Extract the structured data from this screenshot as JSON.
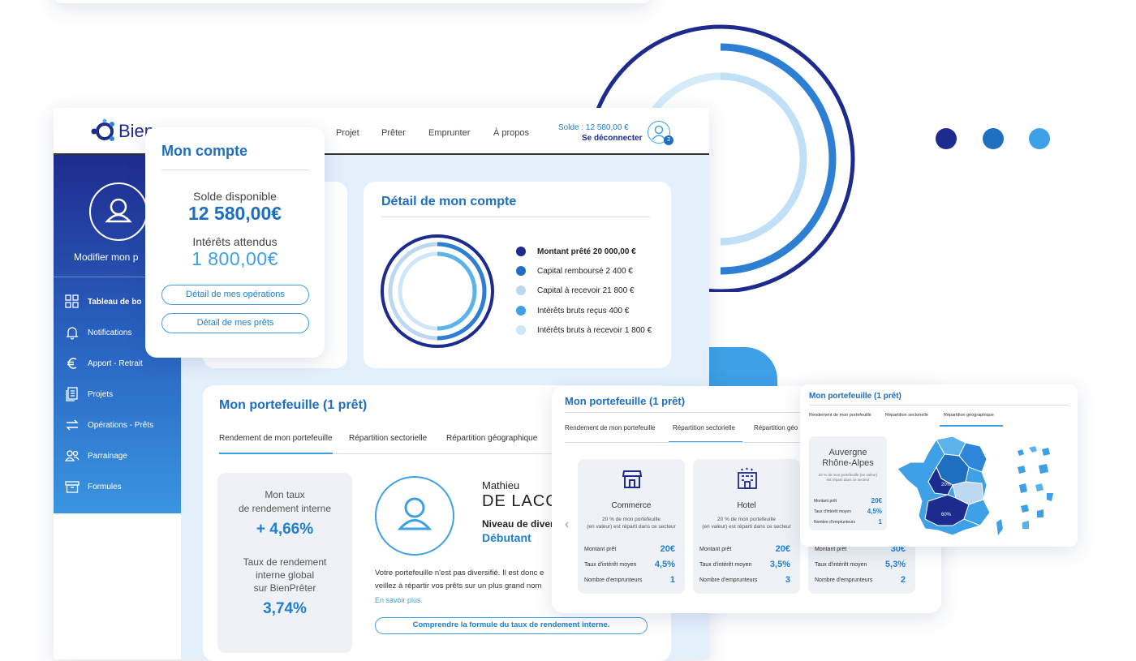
{
  "colors": {
    "navy": "#1e2b8e",
    "primary": "#1f6fc0",
    "mid": "#2d86d9",
    "light": "#5cb3ec",
    "pale": "#bcd8f0",
    "bg_panel": "#e3effb"
  },
  "header": {
    "logo_text": "Bien",
    "nav": [
      "Projet",
      "Prêter",
      "Emprunter",
      "À propos"
    ],
    "balance": "Solde : 12 580,00 €",
    "logout": "Se déconnecter",
    "notif_count": "3"
  },
  "sidebar": {
    "edit_profile": "Modifier mon p",
    "items": [
      {
        "label": "Tableau de bo",
        "icon": "dashboard-icon"
      },
      {
        "label": "Notifications",
        "icon": "bell-icon"
      },
      {
        "label": "Apport - Retrait",
        "icon": "euro-icon"
      },
      {
        "label": "Projets",
        "icon": "documents-icon"
      },
      {
        "label": "Opérations - Prêts",
        "icon": "transfer-icon"
      },
      {
        "label": "Parrainage",
        "icon": "users-icon"
      },
      {
        "label": "Formules",
        "icon": "box-icon"
      }
    ]
  },
  "account_popup": {
    "title": "Mon compte",
    "balance_label": "Solde disponible",
    "balance_value": "12 580,00€",
    "interest_label": "Intérêts attendus",
    "interest_value": "1 800,00€",
    "btn_operations": "Détail de mes opérations",
    "btn_loans": "Détail de mes prêts"
  },
  "account_detail": {
    "title": "Détail de mon compte",
    "legend": [
      {
        "label": "Montant prêté 20 000,00 €",
        "color": "#1e2b8e",
        "bold": true
      },
      {
        "label": "Capital remboursé 2 400 €",
        "color": "#1f6fc0",
        "bold": false
      },
      {
        "label": "Capital à recevoir 21 800 €",
        "color": "#bcd8f0",
        "bold": false
      },
      {
        "label": "Intérêts bruts reçus 400 €",
        "color": "#3ea0e6",
        "bold": false
      },
      {
        "label": "Intérêts bruts à recevoir 1 800 €",
        "color": "#cfe6f8",
        "bold": false
      }
    ]
  },
  "portfolio": {
    "title": "Mon portefeuille (1 prêt)",
    "tabs": [
      "Rendement de mon portefeuille",
      "Répartition sectorielle",
      "Répartition géographique"
    ],
    "rate_label_1": "Mon taux",
    "rate_label_2": "de rendement interne",
    "rate_value": "+ 4,66%",
    "global_label_1": "Taux de rendement",
    "global_label_2": "interne global",
    "global_label_3": "sur BienPrêter",
    "global_value": "3,74%",
    "first_name": "Mathieu",
    "last_name": "DE LACC",
    "level_label": "Niveau de diver",
    "level_value": "Débutant",
    "text_line1": "Votre portefeuille n'est pas diversifié. Il est donc e",
    "text_line2": "veillez à répartir vos prêts sur un plus grand nom",
    "learn_more": "En savoir plus.",
    "formula_button": "Comprendre la formule du taux de rendement interne."
  },
  "sector_card": {
    "title": "Mon portefeuille (1 prêt)",
    "tabs": [
      "Rendement de mon portefeuille",
      "Répartition sectorielle",
      "Répartition géo"
    ],
    "sectors": [
      {
        "name": "Commerce",
        "icon": "shop-icon",
        "desc1": "20 % de mon portefeuille",
        "desc2": "(en valeur) est réparti dans ce secteur",
        "amount": "20€",
        "rate": "4,5%",
        "borrowers": "1"
      },
      {
        "name": "Hotel",
        "icon": "hotel-icon",
        "desc1": "20 % de mon portefeuille",
        "desc2": "(en valeur) est réparti dans ce secteur",
        "amount": "20€",
        "rate": "3,5%",
        "borrowers": "3"
      },
      {
        "name": "",
        "icon": "",
        "desc1": "",
        "desc2": "",
        "amount": "30€",
        "rate": "5,3%",
        "borrowers": "2"
      }
    ],
    "row_labels": [
      "Montant prêt",
      "Taux d'intérêt moyen",
      "Nombre d'emprunteurs"
    ]
  },
  "geo_card": {
    "title": "Mon portefeuille (1 prêt)",
    "tabs": [
      "Rendement de mon portefeuille",
      "Répartition sectorielle",
      "Répartition géographique"
    ],
    "region_1": "Auvergne",
    "region_2": "Rhône-Alpes",
    "region_desc1": "20 % de mon portefeuille (en valeur)",
    "region_desc2": "est réparti dans ce secteur",
    "row_labels": [
      "Montant prêt",
      "Taux d'intérêt moyen",
      "Nombre d'emprunteurs"
    ],
    "amount": "20€",
    "rate": "4,5%",
    "borrowers": "1",
    "map_label_a": "20%",
    "map_label_b": "60%"
  }
}
